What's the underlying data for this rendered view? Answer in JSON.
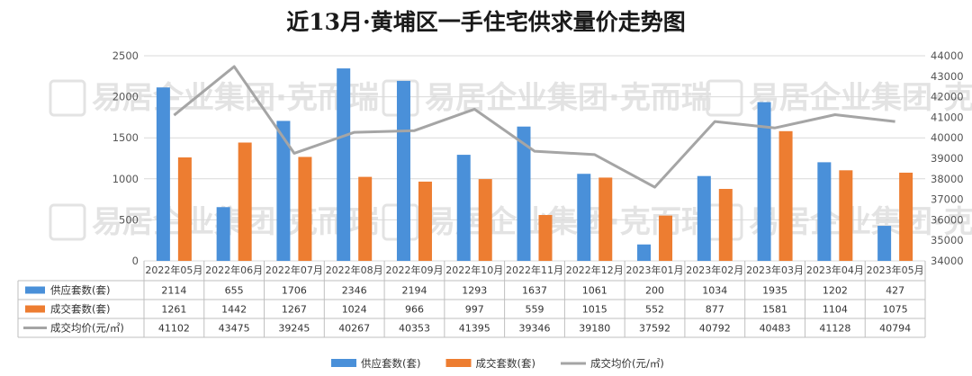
{
  "chart_data": {
    "type": "bar",
    "title": "近13月·黄埔区一手住宅供求量价走势图",
    "categories": [
      "2022年05月",
      "2022年06月",
      "2022年07月",
      "2022年08月",
      "2022年09月",
      "2022年10月",
      "2022年11月",
      "2022年12月",
      "2023年01月",
      "2023年02月",
      "2023年03月",
      "2023年04月",
      "2023年05月"
    ],
    "series": [
      {
        "name": "供应套数(套)",
        "kind": "bar",
        "axis": "left",
        "color": "#4a90d9",
        "values": [
          2114,
          655,
          1706,
          2346,
          2194,
          1293,
          1637,
          1061,
          200,
          1034,
          1935,
          1202,
          427
        ]
      },
      {
        "name": "成交套数(套)",
        "kind": "bar",
        "axis": "left",
        "color": "#ed7d31",
        "values": [
          1261,
          1442,
          1267,
          1024,
          966,
          997,
          559,
          1015,
          552,
          877,
          1581,
          1104,
          1075
        ]
      },
      {
        "name": "成交均价(元/㎡)",
        "kind": "line",
        "axis": "right",
        "color": "#a5a5a5",
        "values": [
          41102,
          43475,
          39245,
          40267,
          40353,
          41395,
          39346,
          39180,
          37592,
          40792,
          40483,
          41128,
          40794
        ]
      }
    ],
    "left_axis": {
      "min": 0,
      "max": 2500,
      "ticks": [
        0,
        500,
        1000,
        1500,
        2000,
        2500
      ]
    },
    "right_axis": {
      "min": 34000,
      "max": 44000,
      "ticks": [
        34000,
        35000,
        36000,
        37000,
        38000,
        39000,
        40000,
        41000,
        42000,
        43000,
        44000
      ]
    },
    "grid": true,
    "legend_position": "bottom",
    "data_table": true
  },
  "watermark": {
    "text": "易居企业集团·克而瑞",
    "logo": "易居"
  }
}
